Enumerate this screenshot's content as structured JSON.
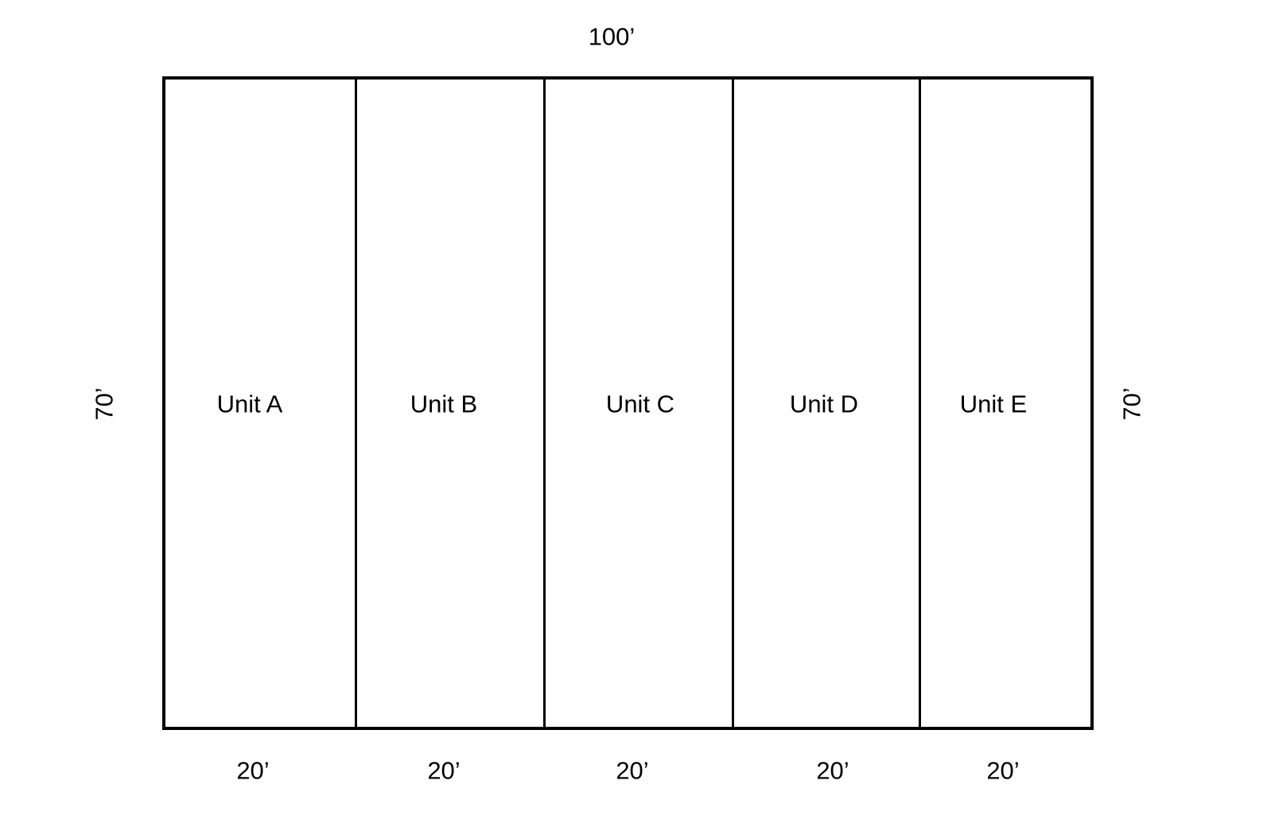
{
  "overall_width_label": "100’",
  "depth_label_left": "70’",
  "depth_label_right": "70’",
  "units": [
    {
      "name": "Unit A",
      "width_label": "20’"
    },
    {
      "name": "Unit B",
      "width_label": "20’"
    },
    {
      "name": "Unit C",
      "width_label": "20’"
    },
    {
      "name": "Unit D",
      "width_label": "20’"
    },
    {
      "name": "Unit E",
      "width_label": "20’"
    }
  ]
}
